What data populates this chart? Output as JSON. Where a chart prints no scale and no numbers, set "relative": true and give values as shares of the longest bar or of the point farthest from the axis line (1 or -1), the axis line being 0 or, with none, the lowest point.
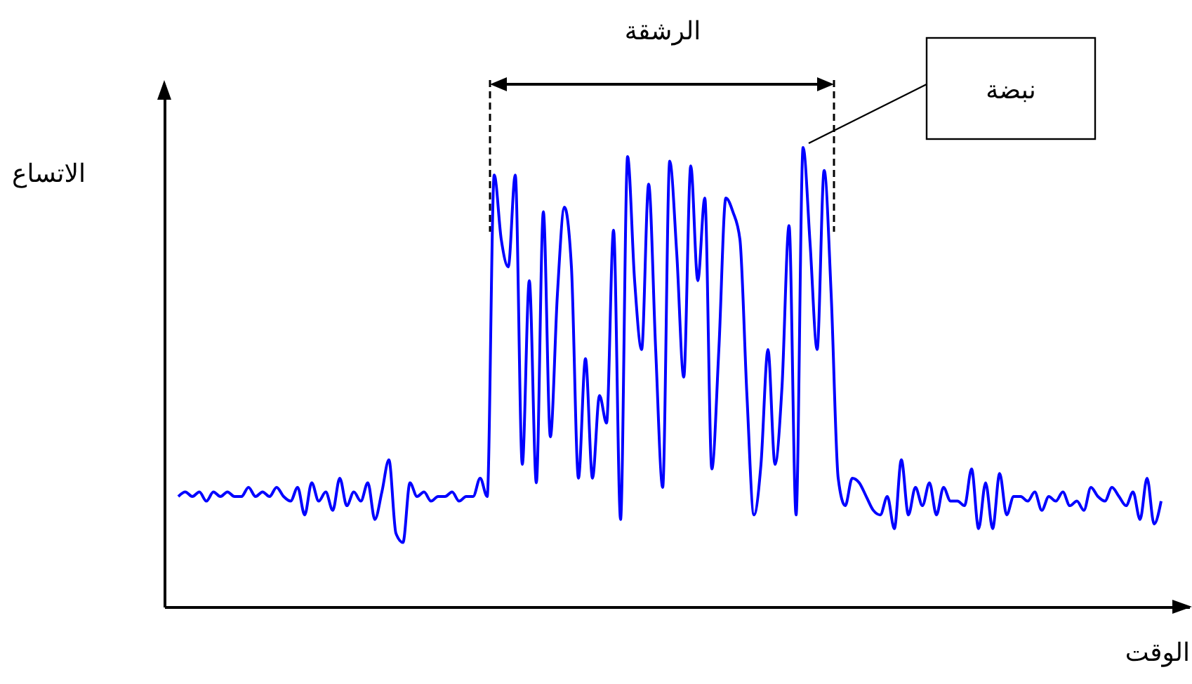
{
  "chart_data": {
    "type": "line",
    "relative": true,
    "xlabel": "الوقت",
    "ylabel": "الاتساع",
    "annotations": [
      "الرشقة",
      "نبضة"
    ],
    "categories": [
      null,
      null,
      null,
      null,
      null,
      null,
      null,
      null,
      null,
      null,
      null,
      null,
      null,
      null,
      null,
      null,
      null,
      null,
      null,
      null,
      null,
      null,
      null,
      null,
      null,
      null,
      null,
      null,
      null,
      null,
      null,
      null,
      null,
      null,
      null,
      null,
      null,
      null,
      null,
      null,
      null,
      null,
      null,
      null,
      null,
      null,
      null,
      null,
      null,
      null,
      null,
      null,
      null,
      null,
      null,
      null,
      null,
      null,
      null,
      null,
      null,
      null,
      null,
      null,
      null,
      null,
      null,
      null,
      null,
      null,
      null,
      null,
      null,
      null,
      null,
      null,
      null,
      null,
      null,
      null,
      null,
      null,
      null,
      null,
      null,
      null,
      null,
      null,
      null,
      null,
      null,
      null,
      null,
      null,
      null,
      null,
      null,
      null,
      null,
      null,
      null,
      null,
      null,
      null,
      null,
      null,
      null,
      null,
      null,
      null,
      null,
      null,
      null,
      null,
      null,
      null,
      null,
      null,
      null,
      null,
      null,
      null,
      null,
      null,
      null,
      null,
      null,
      null,
      null,
      null,
      null,
      null,
      null,
      null,
      null,
      null,
      null,
      null,
      null,
      null,
      null
    ],
    "series": [
      {
        "color": "#0000ff",
        "values": [
          0.24,
          0.25,
          0.24,
          0.25,
          0.23,
          0.25,
          0.24,
          0.25,
          0.24,
          0.24,
          0.26,
          0.24,
          0.25,
          0.24,
          0.26,
          0.24,
          0.23,
          0.26,
          0.2,
          0.27,
          0.23,
          0.25,
          0.21,
          0.28,
          0.22,
          0.25,
          0.23,
          0.27,
          0.19,
          0.25,
          0.32,
          0.16,
          0.14,
          0.27,
          0.24,
          0.25,
          0.23,
          0.24,
          0.24,
          0.25,
          0.23,
          0.24,
          0.24,
          0.28,
          0.24,
          0.94,
          0.8,
          0.74,
          0.94,
          0.31,
          0.71,
          0.27,
          0.86,
          0.37,
          0.68,
          0.87,
          0.74,
          0.28,
          0.54,
          0.28,
          0.46,
          0.4,
          0.82,
          0.19,
          0.98,
          0.71,
          0.56,
          0.92,
          0.56,
          0.26,
          0.97,
          0.77,
          0.5,
          0.96,
          0.71,
          0.89,
          0.3,
          0.56,
          0.89,
          0.86,
          0.8,
          0.46,
          0.2,
          0.31,
          0.56,
          0.31,
          0.48,
          0.83,
          0.2,
          1,
          0.79,
          0.56,
          0.95,
          0.68,
          0.28,
          0.22,
          0.28,
          0.27,
          0.24,
          0.21,
          0.2,
          0.24,
          0.17,
          0.32,
          0.2,
          0.26,
          0.22,
          0.27,
          0.2,
          0.26,
          0.23,
          0.23,
          0.22,
          0.3,
          0.17,
          0.27,
          0.17,
          0.29,
          0.2,
          0.24,
          0.24,
          0.23,
          0.25,
          0.21,
          0.24,
          0.23,
          0.25,
          0.22,
          0.23,
          0.21,
          0.26,
          0.24,
          0.23,
          0.26,
          0.24,
          0.22,
          0.25,
          0.19,
          0.28,
          0.18,
          0.23
        ]
      }
    ]
  }
}
